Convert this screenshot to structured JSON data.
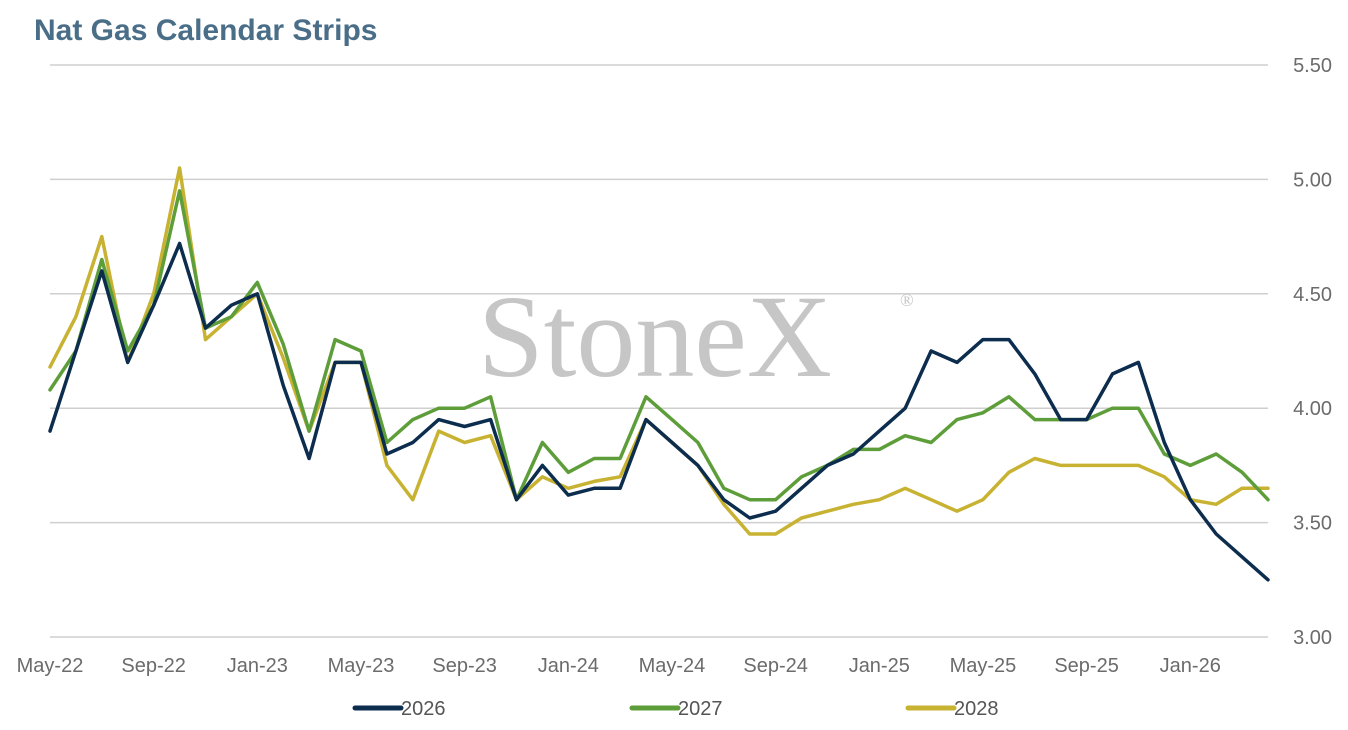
{
  "chart_data": {
    "type": "line",
    "title": "Nat Gas Calendar Strips",
    "watermark": "StoneX",
    "watermark_mark": "®",
    "xlabel": "",
    "ylabel": "",
    "x_range": [
      "2022-05",
      "2026-04"
    ],
    "ylim": [
      3.0,
      5.5
    ],
    "y_axis_position": "right",
    "y_ticks": [
      "3.00",
      "3.50",
      "4.00",
      "4.50",
      "5.00",
      "5.50"
    ],
    "x_ticks": [
      "May-22",
      "Sep-22",
      "Jan-23",
      "May-23",
      "Sep-23",
      "Jan-24",
      "May-24",
      "Sep-24",
      "Jan-25",
      "May-25",
      "Sep-25",
      "Jan-26"
    ],
    "grid": "horizontal",
    "legend_position": "bottom",
    "x": [
      "2022-05",
      "2022-06",
      "2022-07",
      "2022-08",
      "2022-09",
      "2022-10",
      "2022-11",
      "2022-12",
      "2023-01",
      "2023-02",
      "2023-03",
      "2023-04",
      "2023-05",
      "2023-06",
      "2023-07",
      "2023-08",
      "2023-09",
      "2023-10",
      "2023-11",
      "2023-12",
      "2024-01",
      "2024-02",
      "2024-03",
      "2024-04",
      "2024-05",
      "2024-06",
      "2024-07",
      "2024-08",
      "2024-09",
      "2024-10",
      "2024-11",
      "2024-12",
      "2025-01",
      "2025-02",
      "2025-03",
      "2025-04",
      "2025-05",
      "2025-06",
      "2025-07",
      "2025-08",
      "2025-09",
      "2025-10",
      "2025-11",
      "2025-12",
      "2026-01",
      "2026-02",
      "2026-03",
      "2026-04"
    ],
    "series": [
      {
        "name": "2026",
        "color": "#0d2d4f",
        "values": [
          3.9,
          4.25,
          4.6,
          4.2,
          4.45,
          4.72,
          4.35,
          4.45,
          4.5,
          4.1,
          3.78,
          4.2,
          4.2,
          3.8,
          3.85,
          3.95,
          3.92,
          3.95,
          3.6,
          3.75,
          3.62,
          3.65,
          3.65,
          3.95,
          3.85,
          3.75,
          3.6,
          3.52,
          3.55,
          3.65,
          3.75,
          3.8,
          3.9,
          4.0,
          4.25,
          4.2,
          4.3,
          4.3,
          4.15,
          3.95,
          3.95,
          4.15,
          4.2,
          3.85,
          3.6,
          3.45,
          3.35,
          3.25
        ]
      },
      {
        "name": "2027",
        "color": "#5e9e3a",
        "values": [
          4.08,
          4.25,
          4.65,
          4.25,
          4.45,
          4.95,
          4.35,
          4.4,
          4.55,
          4.28,
          3.9,
          4.3,
          4.25,
          3.85,
          3.95,
          4.0,
          4.0,
          4.05,
          3.6,
          3.85,
          3.72,
          3.78,
          3.78,
          4.05,
          3.95,
          3.85,
          3.65,
          3.6,
          3.6,
          3.7,
          3.75,
          3.82,
          3.82,
          3.88,
          3.85,
          3.95,
          3.98,
          4.05,
          3.95,
          3.95,
          3.95,
          4.0,
          4.0,
          3.8,
          3.75,
          3.8,
          3.72,
          3.6
        ]
      },
      {
        "name": "2028",
        "color": "#c8b232",
        "values": [
          4.18,
          4.4,
          4.75,
          4.2,
          4.5,
          5.05,
          4.3,
          4.4,
          4.5,
          4.22,
          3.9,
          4.2,
          4.2,
          3.75,
          3.6,
          3.9,
          3.85,
          3.88,
          3.6,
          3.7,
          3.65,
          3.68,
          3.7,
          3.95,
          3.85,
          3.75,
          3.58,
          3.45,
          3.45,
          3.52,
          3.55,
          3.58,
          3.6,
          3.65,
          3.6,
          3.55,
          3.6,
          3.72,
          3.78,
          3.75,
          3.75,
          3.75,
          3.75,
          3.7,
          3.6,
          3.58,
          3.65,
          3.65
        ]
      }
    ]
  }
}
